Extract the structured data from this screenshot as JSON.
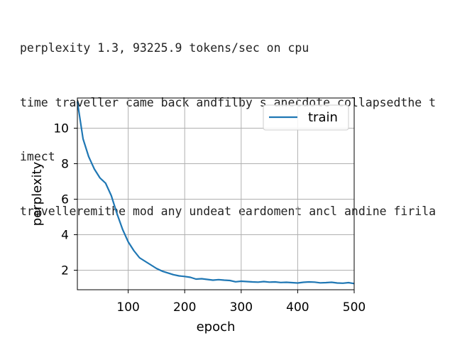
{
  "output_lines": [
    "perplexity 1.3, 93225.9 tokens/sec on cpu",
    "time traveller came back andfilby s anecdote collapsedthe t",
    "imect",
    "travelleremithe mod any undeat eardoment ancl andine firila"
  ],
  "chart_data": {
    "type": "line",
    "title": "",
    "xlabel": "epoch",
    "ylabel": "perplexity",
    "xlim": [
      10,
      500
    ],
    "ylim": [
      0.9,
      11.7
    ],
    "xticks": [
      100,
      200,
      300,
      400,
      500
    ],
    "yticks": [
      2,
      4,
      6,
      8,
      10
    ],
    "grid": true,
    "legend": "top-right",
    "colors": {
      "train": "#1f77b4"
    },
    "series": [
      {
        "name": "train",
        "x": [
          10,
          20,
          30,
          40,
          50,
          60,
          70,
          80,
          90,
          100,
          110,
          120,
          130,
          140,
          150,
          160,
          170,
          180,
          190,
          200,
          210,
          220,
          230,
          240,
          250,
          260,
          270,
          280,
          290,
          300,
          310,
          320,
          330,
          340,
          350,
          360,
          370,
          380,
          390,
          400,
          410,
          420,
          430,
          440,
          450,
          460,
          470,
          480,
          490,
          500
        ],
        "y": [
          11.5,
          9.4,
          8.4,
          7.7,
          7.2,
          6.9,
          6.2,
          5.2,
          4.3,
          3.6,
          3.1,
          2.7,
          2.5,
          2.3,
          2.1,
          1.95,
          1.85,
          1.75,
          1.68,
          1.65,
          1.6,
          1.5,
          1.52,
          1.48,
          1.44,
          1.47,
          1.44,
          1.42,
          1.35,
          1.38,
          1.36,
          1.34,
          1.33,
          1.36,
          1.33,
          1.34,
          1.31,
          1.32,
          1.3,
          1.28,
          1.32,
          1.34,
          1.33,
          1.29,
          1.3,
          1.32,
          1.28,
          1.27,
          1.3,
          1.25
        ]
      }
    ]
  }
}
